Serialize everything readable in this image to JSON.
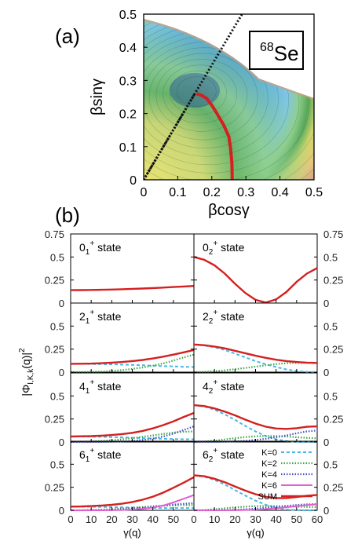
{
  "figure": {
    "panel_a_label": "(a)",
    "panel_b_label": "(b)"
  },
  "chart_data": [
    {
      "type": "heatmap",
      "panel": "(a)",
      "nucleus_mass": "68",
      "nucleus_symbol": "Se",
      "xlabel": "βcosγ",
      "ylabel": "βsinγ",
      "xlim": [
        0,
        0.5
      ],
      "ylim": [
        0,
        0.5
      ],
      "x_ticks": [
        "0",
        "0.1",
        "0.2",
        "0.3",
        "0.4",
        "0.5"
      ],
      "y_ticks": [
        "0",
        "0.1",
        "0.2",
        "0.3",
        "0.4",
        "0.5"
      ],
      "energy_minimum": {
        "x": 0.15,
        "y": 0.27
      },
      "collective_path": {
        "color": "#d42020",
        "x": [
          0.26,
          0.259,
          0.255,
          0.25,
          0.235,
          0.215,
          0.2,
          0.185,
          0.17,
          0.155
        ],
        "y": [
          0.0,
          0.05,
          0.095,
          0.13,
          0.165,
          0.2,
          0.225,
          0.245,
          0.255,
          0.26
        ]
      },
      "gamma_line": {
        "gamma_deg": 60,
        "style": "dotted"
      },
      "colorscale": [
        "#2a5db0",
        "#3a8ed8",
        "#5cb0e6",
        "#7fc6e8",
        "#8fcf8f",
        "#58a85a",
        "#cfd66a",
        "#e8c87a",
        "#d8a08a",
        "#c8a4c8"
      ]
    },
    {
      "type": "line",
      "panel": "(b)",
      "ylabel": "|Φ",
      "ylabel_subscript": "I,K,k",
      "ylabel_tail": "(q)|",
      "ylabel_power": "2",
      "xlabel": "γ(q)",
      "xlim": [
        0,
        60
      ],
      "ylim": [
        0,
        0.75
      ],
      "x_ticks": [
        "0",
        "10",
        "20",
        "30",
        "40",
        "50"
      ],
      "x_ticks_right": [
        "0",
        "10",
        "20",
        "30",
        "40",
        "50",
        "60"
      ],
      "y_ticks": [
        "0",
        "0.25",
        "0.5",
        "0.75"
      ],
      "x": [
        0,
        5,
        10,
        15,
        20,
        25,
        30,
        35,
        40,
        45,
        50,
        55,
        60
      ],
      "legend": {
        "position": "inside bottom-right panel",
        "items": [
          {
            "label": "K=0",
            "color": "#45b8e6",
            "style": "dashed"
          },
          {
            "label": "K=2",
            "color": "#3aa845",
            "style": "dotted"
          },
          {
            "label": "K=4",
            "color": "#4b4bbf",
            "style": "dotted"
          },
          {
            "label": "K=6",
            "color": "#e25fd2",
            "style": "solid"
          },
          {
            "label": "SUM",
            "color": "#d42020",
            "style": "solid"
          }
        ]
      },
      "panels": [
        {
          "state": "0",
          "index": "1",
          "col": 0,
          "row": 0,
          "series": [
            {
              "name": "SUM",
              "values": [
                0.14,
                0.141,
                0.142,
                0.144,
                0.147,
                0.15,
                0.154,
                0.158,
                0.163,
                0.168,
                0.174,
                0.18,
                0.186
              ]
            }
          ]
        },
        {
          "state": "0",
          "index": "2",
          "col": 1,
          "row": 0,
          "series": [
            {
              "name": "SUM",
              "values": [
                0.5,
                0.47,
                0.41,
                0.32,
                0.21,
                0.11,
                0.035,
                0.005,
                0.04,
                0.12,
                0.23,
                0.32,
                0.38
              ]
            }
          ]
        },
        {
          "state": "2",
          "index": "1",
          "col": 0,
          "row": 1,
          "series": [
            {
              "name": "K=0",
              "values": [
                0.09,
                0.09,
                0.089,
                0.087,
                0.085,
                0.082,
                0.078,
                0.074,
                0.07,
                0.066,
                0.062,
                0.058,
                0.055
              ]
            },
            {
              "name": "K=2",
              "values": [
                0.0,
                0.001,
                0.003,
                0.007,
                0.013,
                0.022,
                0.035,
                0.05,
                0.07,
                0.095,
                0.125,
                0.16,
                0.19
              ]
            },
            {
              "name": "SUM",
              "values": [
                0.09,
                0.091,
                0.093,
                0.097,
                0.103,
                0.11,
                0.12,
                0.132,
                0.148,
                0.168,
                0.19,
                0.215,
                0.24
              ]
            }
          ]
        },
        {
          "state": "2",
          "index": "2",
          "col": 1,
          "row": 1,
          "series": [
            {
              "name": "K=0",
              "values": [
                0.3,
                0.29,
                0.27,
                0.24,
                0.2,
                0.16,
                0.12,
                0.085,
                0.055,
                0.03,
                0.012,
                0.003,
                0.0
              ]
            },
            {
              "name": "K=2",
              "values": [
                0.0,
                0.003,
                0.01,
                0.02,
                0.032,
                0.045,
                0.06,
                0.075,
                0.088,
                0.097,
                0.1,
                0.1,
                0.1
              ]
            },
            {
              "name": "SUM",
              "values": [
                0.3,
                0.292,
                0.278,
                0.258,
                0.232,
                0.205,
                0.178,
                0.155,
                0.135,
                0.12,
                0.11,
                0.103,
                0.1
              ]
            }
          ]
        },
        {
          "state": "4",
          "index": "1",
          "col": 0,
          "row": 2,
          "series": [
            {
              "name": "K=0",
              "values": [
                0.06,
                0.06,
                0.058,
                0.056,
                0.053,
                0.05,
                0.046,
                0.042,
                0.038,
                0.035,
                0.032,
                0.03,
                0.03
              ]
            },
            {
              "name": "K=2",
              "values": [
                0.0,
                0.002,
                0.006,
                0.012,
                0.02,
                0.03,
                0.042,
                0.056,
                0.072,
                0.088,
                0.102,
                0.112,
                0.115
              ]
            },
            {
              "name": "K=4",
              "values": [
                0.0,
                0.0,
                0.0,
                0.001,
                0.003,
                0.006,
                0.012,
                0.022,
                0.038,
                0.06,
                0.09,
                0.13,
                0.17
              ]
            },
            {
              "name": "SUM",
              "values": [
                0.06,
                0.062,
                0.064,
                0.069,
                0.076,
                0.086,
                0.1,
                0.12,
                0.148,
                0.183,
                0.224,
                0.272,
                0.315
              ]
            }
          ]
        },
        {
          "state": "4",
          "index": "2",
          "col": 1,
          "row": 2,
          "series": [
            {
              "name": "K=0",
              "values": [
                0.4,
                0.385,
                0.35,
                0.3,
                0.24,
                0.175,
                0.115,
                0.065,
                0.03,
                0.01,
                0.002,
                0.0,
                0.0
              ]
            },
            {
              "name": "K=2",
              "values": [
                0.0,
                0.004,
                0.014,
                0.028,
                0.042,
                0.054,
                0.062,
                0.066,
                0.065,
                0.06,
                0.052,
                0.045,
                0.04
              ]
            },
            {
              "name": "K=4",
              "values": [
                0.0,
                0.0,
                0.001,
                0.003,
                0.007,
                0.013,
                0.022,
                0.035,
                0.052,
                0.072,
                0.095,
                0.115,
                0.125
              ]
            },
            {
              "name": "SUM",
              "values": [
                0.4,
                0.39,
                0.365,
                0.33,
                0.29,
                0.243,
                0.2,
                0.166,
                0.147,
                0.142,
                0.15,
                0.165,
                0.17
              ]
            }
          ]
        },
        {
          "state": "6",
          "index": "1",
          "col": 0,
          "row": 3,
          "series": [
            {
              "name": "K=0",
              "values": [
                0.04,
                0.04,
                0.039,
                0.037,
                0.035,
                0.032,
                0.03,
                0.028,
                0.026,
                0.025,
                0.025,
                0.025,
                0.025
              ]
            },
            {
              "name": "K=2",
              "values": [
                0.0,
                0.001,
                0.004,
                0.008,
                0.013,
                0.02,
                0.028,
                0.036,
                0.044,
                0.05,
                0.054,
                0.056,
                0.056
              ]
            },
            {
              "name": "K=4",
              "values": [
                0.0,
                0.0,
                0.001,
                0.003,
                0.006,
                0.011,
                0.018,
                0.027,
                0.038,
                0.05,
                0.062,
                0.072,
                0.078
              ]
            },
            {
              "name": "K=6",
              "values": [
                0.0,
                0.0,
                0.0,
                0.0,
                0.001,
                0.003,
                0.008,
                0.016,
                0.03,
                0.052,
                0.085,
                0.125,
                0.165
              ]
            },
            {
              "name": "SUM",
              "values": [
                0.04,
                0.042,
                0.046,
                0.052,
                0.06,
                0.072,
                0.09,
                0.115,
                0.148,
                0.192,
                0.245,
                0.3,
                0.36
              ]
            }
          ]
        },
        {
          "state": "6",
          "index": "2",
          "col": 1,
          "row": 3,
          "series": [
            {
              "name": "K=0",
              "values": [
                0.38,
                0.365,
                0.33,
                0.28,
                0.22,
                0.16,
                0.105,
                0.06,
                0.028,
                0.009,
                0.002,
                0.0,
                0.0
              ]
            },
            {
              "name": "K=2",
              "values": [
                0.0,
                0.004,
                0.012,
                0.022,
                0.032,
                0.04,
                0.045,
                0.047,
                0.046,
                0.043,
                0.04,
                0.037,
                0.035
              ]
            },
            {
              "name": "K=4",
              "values": [
                0.0,
                0.0,
                0.001,
                0.003,
                0.006,
                0.011,
                0.018,
                0.027,
                0.037,
                0.048,
                0.058,
                0.065,
                0.068
              ]
            },
            {
              "name": "K=6",
              "values": [
                0.0,
                0.0,
                0.0,
                0.0,
                0.001,
                0.003,
                0.007,
                0.013,
                0.022,
                0.033,
                0.045,
                0.056,
                0.064
              ]
            },
            {
              "name": "SUM",
              "values": [
                0.38,
                0.37,
                0.343,
                0.305,
                0.259,
                0.214,
                0.175,
                0.147,
                0.133,
                0.133,
                0.145,
                0.158,
                0.167
              ]
            }
          ]
        }
      ]
    }
  ]
}
